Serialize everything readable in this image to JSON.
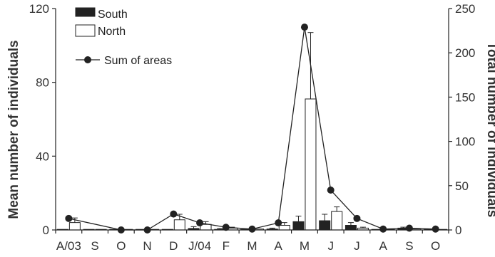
{
  "chart_data": {
    "type": "bar",
    "categories": [
      "A/03",
      "S",
      "O",
      "N",
      "D",
      "J/04",
      "F",
      "M",
      "A",
      "M",
      "J",
      "J",
      "A",
      "S",
      "O"
    ],
    "ylabel": "Mean number of individuals",
    "y2label": "Total number of individuals",
    "ylim": [
      0,
      120
    ],
    "y2lim": [
      0,
      250
    ],
    "yticks": [
      "0",
      "40",
      "80",
      "120"
    ],
    "y2ticks": [
      "0",
      "50",
      "100",
      "150",
      "200",
      "250"
    ],
    "legend_placement": "top-left",
    "series": [
      {
        "name": "South",
        "kind": "bar",
        "color": "#222222",
        "values": [
          0.2,
          0,
          0,
          0,
          0.2,
          0.8,
          0.3,
          0.3,
          0.5,
          4.5,
          5,
          2.5,
          0.3,
          1,
          0.2
        ],
        "errors": [
          0,
          0,
          0,
          0,
          0,
          1,
          0.5,
          0,
          0.5,
          3,
          3.5,
          1.5,
          0,
          0.5,
          0
        ]
      },
      {
        "name": "North",
        "kind": "bar",
        "color": "#ffffff",
        "values": [
          4,
          0,
          0.2,
          0.2,
          5.5,
          3,
          1,
          0.5,
          2.5,
          71,
          10,
          1,
          0.3,
          0.5,
          0.2
        ],
        "errors": [
          2.5,
          0,
          0,
          0,
          3,
          1.5,
          0.5,
          0,
          1.5,
          36,
          2.5,
          0.5,
          0,
          0,
          0
        ]
      },
      {
        "name": "Sum of areas",
        "kind": "line",
        "axis": "right",
        "color": "#222222",
        "values": [
          13,
          null,
          0,
          0,
          18,
          8,
          3,
          1,
          8,
          229,
          45,
          13,
          1,
          2,
          1
        ]
      }
    ]
  }
}
